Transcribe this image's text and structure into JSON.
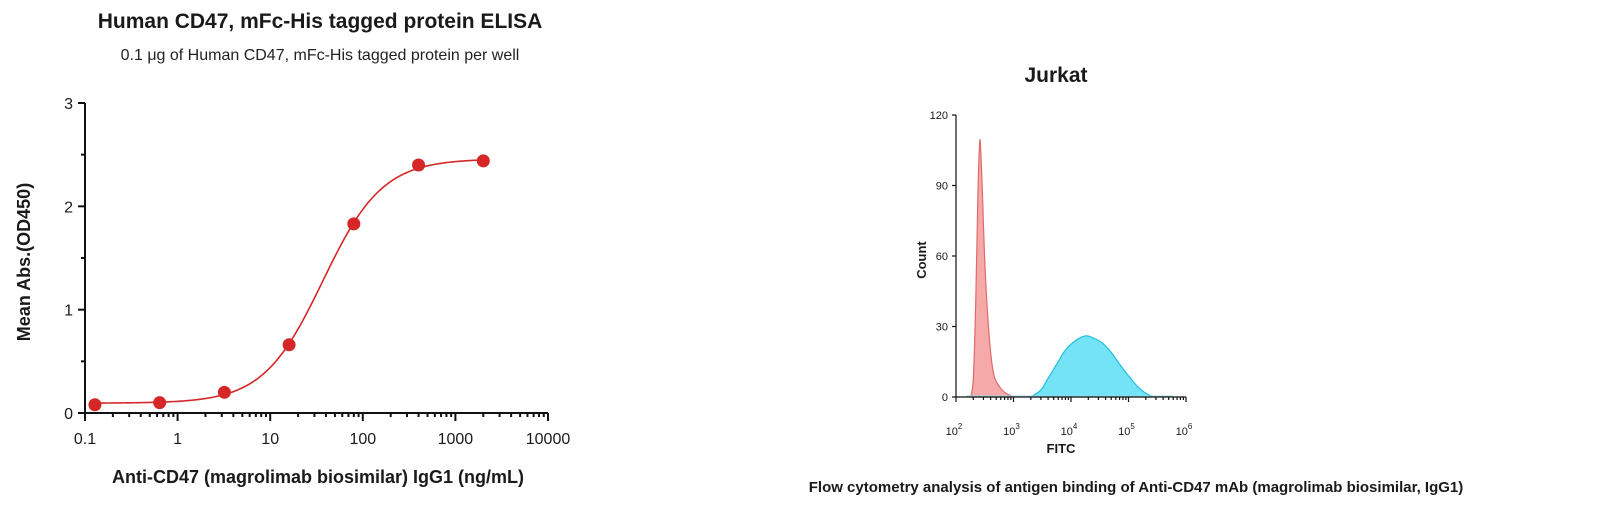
{
  "chart_data": [
    {
      "type": "scatter",
      "title": "Human CD47, mFc-His tagged protein ELISA",
      "subtitle": "0.1 μg of Human CD47, mFc-His tagged protein per well",
      "xlabel": "Anti-CD47 (magrolimab biosimilar) IgG1 (ng/mL)",
      "ylabel": "Mean Abs.(OD450)",
      "xscale": "log",
      "xlim": [
        0.1,
        10000
      ],
      "ylim": [
        0,
        3
      ],
      "xticks": [
        "0.1",
        "1",
        "10",
        "100",
        "1000",
        "10000"
      ],
      "yticks": [
        "0",
        "1",
        "2",
        "3"
      ],
      "color": "#d62728",
      "fit": "4-parameter logistic",
      "points": [
        {
          "x": 0.128,
          "y": 0.08
        },
        {
          "x": 0.64,
          "y": 0.1
        },
        {
          "x": 3.2,
          "y": 0.2
        },
        {
          "x": 16,
          "y": 0.66
        },
        {
          "x": 80,
          "y": 1.83
        },
        {
          "x": 400,
          "y": 2.4
        },
        {
          "x": 2000,
          "y": 2.44
        }
      ]
    },
    {
      "type": "area",
      "title": "Jurkat",
      "xlabel": "FITC",
      "ylabel": "Count",
      "xscale": "log",
      "xlim": [
        100,
        1000000
      ],
      "ylim": [
        0,
        120
      ],
      "yticks": [
        "0",
        "30",
        "60",
        "90",
        "120"
      ],
      "xtick_bases": [
        "10",
        "10",
        "10",
        "10",
        "10"
      ],
      "xtick_exponents": [
        "2",
        "3",
        "4",
        "5",
        "6"
      ],
      "caption": "Flow cytometry analysis of antigen binding of Anti-CD47 mAb  (magrolimab biosimilar,  IgG1)",
      "series": [
        {
          "color": "#f4a0a0",
          "stroke": "#e06a6a",
          "points": [
            [
              180,
              0
            ],
            [
              200,
              8
            ],
            [
              220,
              40
            ],
            [
              240,
              85
            ],
            [
              255,
              106
            ],
            [
              265,
              108
            ],
            [
              285,
              90
            ],
            [
              320,
              55
            ],
            [
              380,
              25
            ],
            [
              450,
              10
            ],
            [
              550,
              5
            ],
            [
              700,
              2
            ],
            [
              1000,
              0
            ]
          ]
        },
        {
          "color": "#66e0f5",
          "stroke": "#20c0e0",
          "points": [
            [
              2000,
              0
            ],
            [
              3000,
              3
            ],
            [
              4000,
              8
            ],
            [
              6000,
              15
            ],
            [
              8000,
              20
            ],
            [
              12000,
              24
            ],
            [
              18000,
              26
            ],
            [
              25000,
              25
            ],
            [
              35000,
              23
            ],
            [
              50000,
              19
            ],
            [
              70000,
              14
            ],
            [
              100000,
              9
            ],
            [
              150000,
              4
            ],
            [
              220000,
              1
            ],
            [
              300000,
              0
            ]
          ]
        }
      ]
    }
  ]
}
